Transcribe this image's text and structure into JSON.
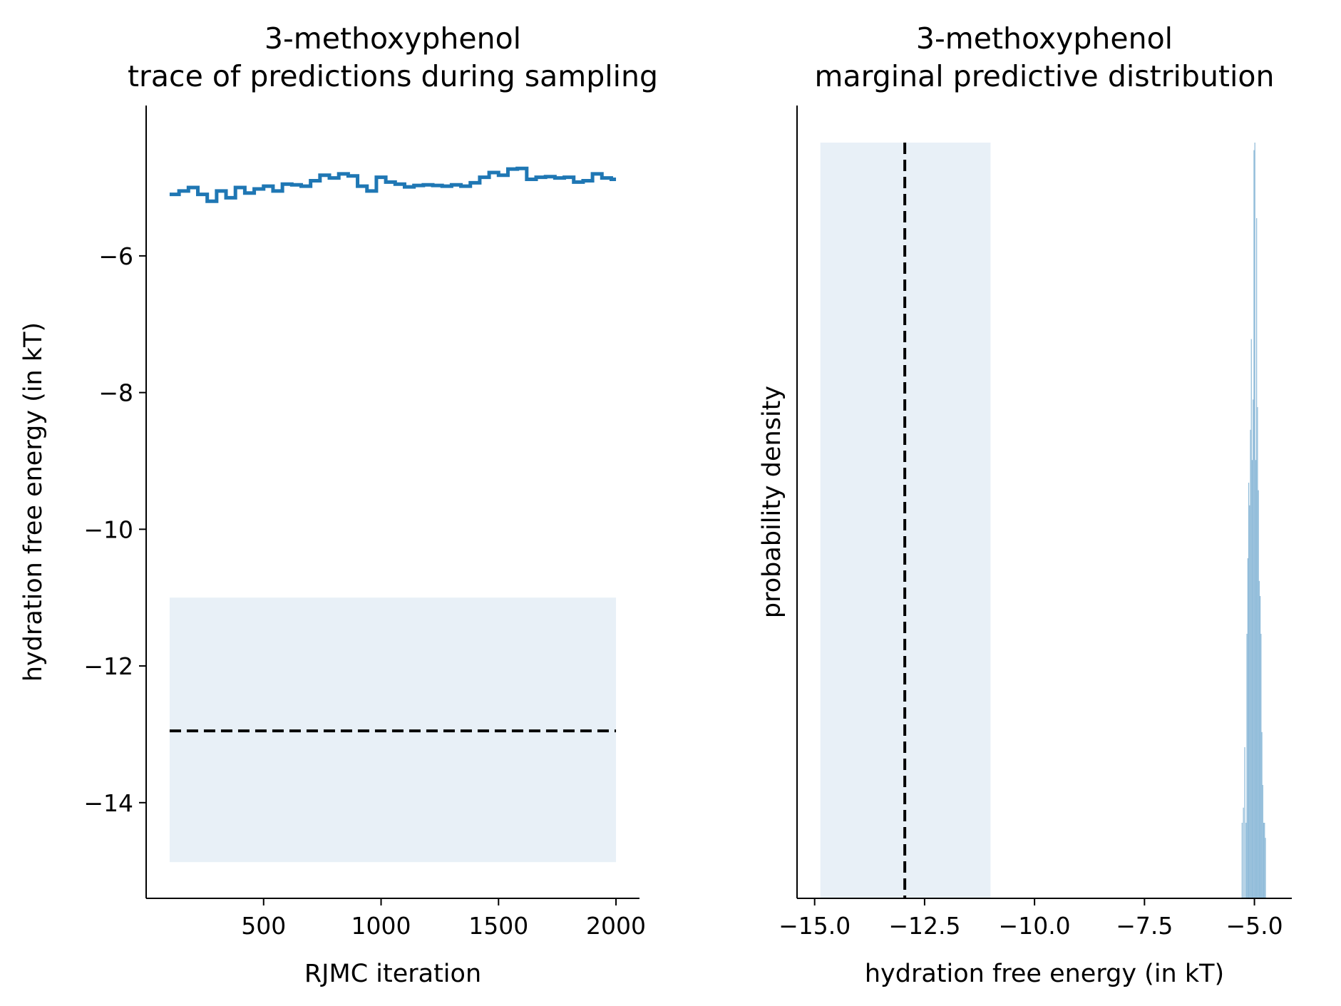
{
  "chart_data": [
    {
      "type": "line",
      "title": "3-methoxyphenol\ntrace of predictions during sampling",
      "xlabel": "RJMC iteration",
      "ylabel": "hydration free energy (in kT)",
      "xlim": [
        0,
        2100
      ],
      "ylim": [
        -15.4,
        -3.8
      ],
      "xticks": [
        500,
        1000,
        1500,
        2000
      ],
      "xtick_labels": [
        "500",
        "1000",
        "1500",
        "2000"
      ],
      "yticks": [
        -6,
        -8,
        -10,
        -12,
        -14
      ],
      "ytick_labels": [
        "−6",
        "−8",
        "−10",
        "−12",
        "−14"
      ],
      "grid": false,
      "legend": "none",
      "series": [
        {
          "color": "#1f77b4",
          "style": "step",
          "x": [
            100,
            140,
            180,
            220,
            260,
            300,
            340,
            380,
            420,
            460,
            500,
            540,
            580,
            620,
            660,
            700,
            740,
            780,
            820,
            860,
            900,
            940,
            980,
            1020,
            1060,
            1100,
            1140,
            1180,
            1220,
            1260,
            1300,
            1340,
            1380,
            1420,
            1460,
            1500,
            1540,
            1580,
            1620,
            1660,
            1700,
            1740,
            1780,
            1820,
            1860,
            1900,
            1940,
            1980,
            2000
          ],
          "y": [
            -5.1,
            -5.05,
            -5.0,
            -5.1,
            -5.2,
            -5.05,
            -5.15,
            -5.0,
            -5.08,
            -5.02,
            -4.98,
            -5.05,
            -4.95,
            -4.96,
            -4.98,
            -4.9,
            -4.82,
            -4.86,
            -4.8,
            -4.83,
            -4.98,
            -5.05,
            -4.85,
            -4.92,
            -4.95,
            -4.99,
            -4.97,
            -4.96,
            -4.97,
            -4.98,
            -4.96,
            -4.98,
            -4.93,
            -4.85,
            -4.78,
            -4.82,
            -4.73,
            -4.72,
            -4.88,
            -4.85,
            -4.84,
            -4.86,
            -4.85,
            -4.92,
            -4.9,
            -4.8,
            -4.86,
            -4.88,
            -4.88
          ]
        },
        {
          "color": "#000000",
          "style": "dashed",
          "x": [
            100,
            2000
          ],
          "y": [
            -12.95,
            -12.95
          ]
        }
      ],
      "band": {
        "x": [
          100,
          2000
        ],
        "y": [
          -14.87,
          -11.0
        ],
        "color": "#e8f0f7"
      }
    },
    {
      "type": "bar",
      "title": "3-methoxyphenol\nmarginal predictive distribution",
      "xlabel": "hydration free energy (in kT)",
      "ylabel": "probability density",
      "xlim": [
        -15.4,
        -4.15
      ],
      "xticks": [
        -15.0,
        -12.5,
        -10.0,
        -7.5,
        -5.0
      ],
      "xtick_labels": [
        "−15.0",
        "−12.5",
        "−10.0",
        "−7.5",
        "−5.0"
      ],
      "grid": false,
      "legend": "none",
      "vline": {
        "x": -12.95,
        "color": "#000000",
        "style": "dashed"
      },
      "band": {
        "x": [
          -14.87,
          -11.0
        ],
        "color": "#e8f0f7"
      },
      "histogram": {
        "color": "#8fbbd9",
        "max_density": 1.0,
        "bins": [
          [
            -5.28,
            0.1
          ],
          [
            -5.25,
            0.12
          ],
          [
            -5.22,
            0.2
          ],
          [
            -5.19,
            0.1
          ],
          [
            -5.17,
            0.35
          ],
          [
            -5.15,
            0.45
          ],
          [
            -5.13,
            0.55
          ],
          [
            -5.11,
            0.52
          ],
          [
            -5.09,
            0.62
          ],
          [
            -5.07,
            0.74
          ],
          [
            -5.05,
            0.58
          ],
          [
            -5.03,
            0.66
          ],
          [
            -5.01,
            0.99
          ],
          [
            -4.99,
            1.0
          ],
          [
            -4.97,
            0.58
          ],
          [
            -4.95,
            0.9
          ],
          [
            -4.93,
            0.65
          ],
          [
            -4.91,
            0.54
          ],
          [
            -4.89,
            0.42
          ],
          [
            -4.87,
            0.4
          ],
          [
            -4.85,
            0.35
          ],
          [
            -4.83,
            0.22
          ],
          [
            -4.81,
            0.15
          ],
          [
            -4.79,
            0.1
          ],
          [
            -4.77,
            0.1
          ],
          [
            -4.75,
            0.08
          ]
        ]
      }
    }
  ]
}
